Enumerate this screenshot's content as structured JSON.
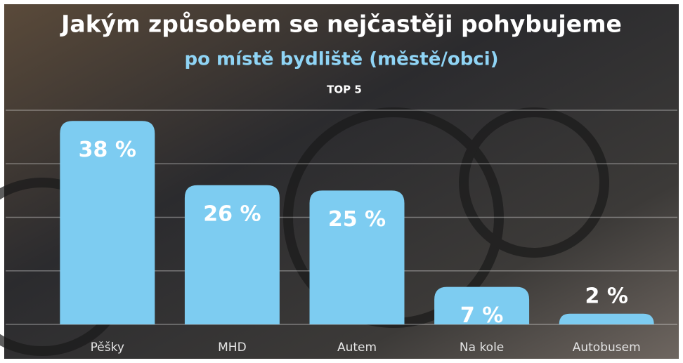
{
  "chart_data": {
    "type": "bar",
    "title": "Jakým způsobem se nejčastěji pohybujeme",
    "subtitle": "po místě bydliště (městě/obci)",
    "annotation": "TOP 5",
    "categories": [
      "Pěšky",
      "MHD",
      "Autem",
      "Na kole",
      "Autobusem"
    ],
    "values": [
      38,
      26,
      25,
      7,
      2
    ],
    "value_labels": [
      "38 %",
      "26 %",
      "25 %",
      "7 %",
      "2 %"
    ],
    "color": "#7dccf1",
    "ylim": [
      0,
      40
    ],
    "yticks": [
      0,
      10,
      20,
      30,
      40
    ],
    "grid": true
  }
}
